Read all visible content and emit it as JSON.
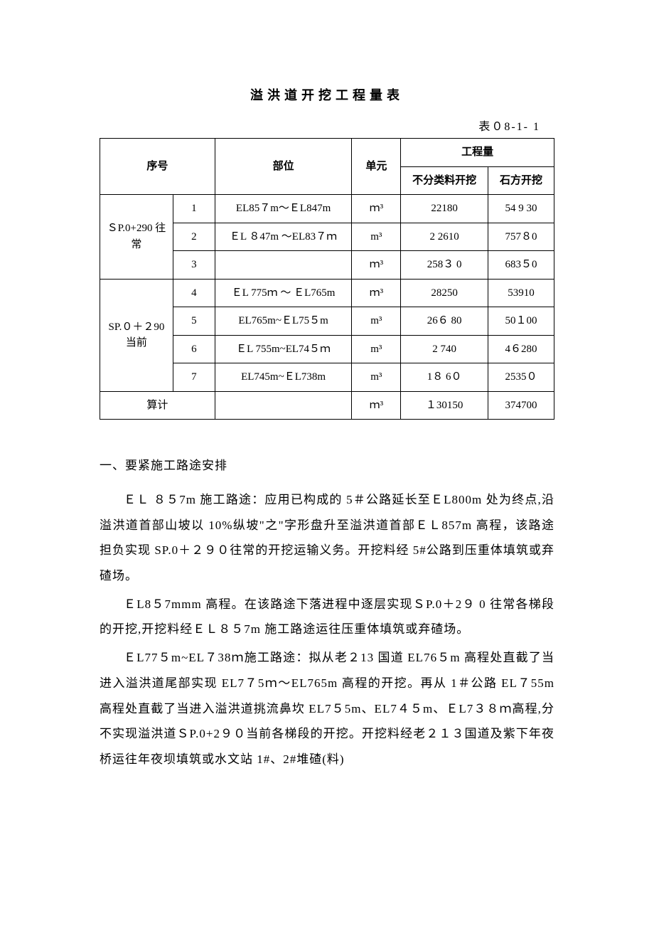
{
  "title": "溢洪道开挖工程量表",
  "tableLabel": "表０8-1- 1",
  "headers": {
    "seq": "序号",
    "part": "部位",
    "unit": "单元",
    "qty": "工程量",
    "qty1": "不分类料开挖",
    "qty2": "石方开挖"
  },
  "group1": "ＳP.0+290 往常",
  "group2": "SP.０＋２90 当前",
  "sumLabel": "算计",
  "rows": [
    {
      "n": "1",
      "part": "EL85７m～ＥL847m",
      "unit": "ｍ³",
      "q1": "22180",
      "q2": "54 9 30"
    },
    {
      "n": "2",
      "part": "ＥL ８47m ～EL83７ｍ",
      "unit": "m³",
      "q1": "2 2610",
      "q2": "757８0"
    },
    {
      "n": "3",
      "part": "",
      "unit": "ｍ³",
      "q1": "258３ 0",
      "q2": "683５0"
    },
    {
      "n": "4",
      "part": "ＥL 775ｍ ～ ＥL765m",
      "unit": "ｍ³",
      "q1": "28250",
      "q2": "53910"
    },
    {
      "n": "5",
      "part": "EL765m~ＥL75５m",
      "unit": "m³",
      "q1": "26６ 80",
      "q2": "50１00"
    },
    {
      "n": "6",
      "part": "ＥL 755m~EL74５ｍ",
      "unit": "m³",
      "q1": "2 740",
      "q2": "4６280"
    },
    {
      "n": "7",
      "part": "EL745m~ＥL738m",
      "unit": "m³",
      "q1": "1８ 6０",
      "q2": "2535０"
    }
  ],
  "sum": {
    "unit": "ｍ³",
    "q1": "１30150",
    "q2": "374700"
  },
  "section": "一、要紧施工路途安排",
  "p1": "ＥＬ ８５7m 施工路途：应用已构成的 5＃公路延长至ＥL800m 处为终点,沿溢洪道首部山坡以 10%纵坡\"之\"字形盘升至溢洪道首部ＥＬ857m 高程，该路途担负实现 SP.0＋２９０往常的开挖运输义务。开挖料经 5#公路到压重体填筑或弃碴场。",
  "p2": "ＥL8５7mmm 高程。在该路途下落进程中逐层实现ＳP.0＋2９ 0 往常各梯段的开挖,开挖料经ＥＬ８５7m 施工路途运往压重体填筑或弃碴场。",
  "p3": "ＥL77５m~EL７38ｍ施工路途：拟从老２13 国道 EL76５m 高程处直截了当进入溢洪道尾部实现 EL7７5ｍ～EL765m 高程的开挖。再从 1＃公路 EL７55m 高程处直截了当进入溢洪道挑流鼻坎 EL7５5m、EL7４５m、ＥL7３８ｍ高程,分不实现溢洪道ＳP.0+2９０当前各梯段的开挖。开挖料经老２１３国道及紫下年夜桥运往年夜坝填筑或水文站 1#、2#堆碴(料)"
}
